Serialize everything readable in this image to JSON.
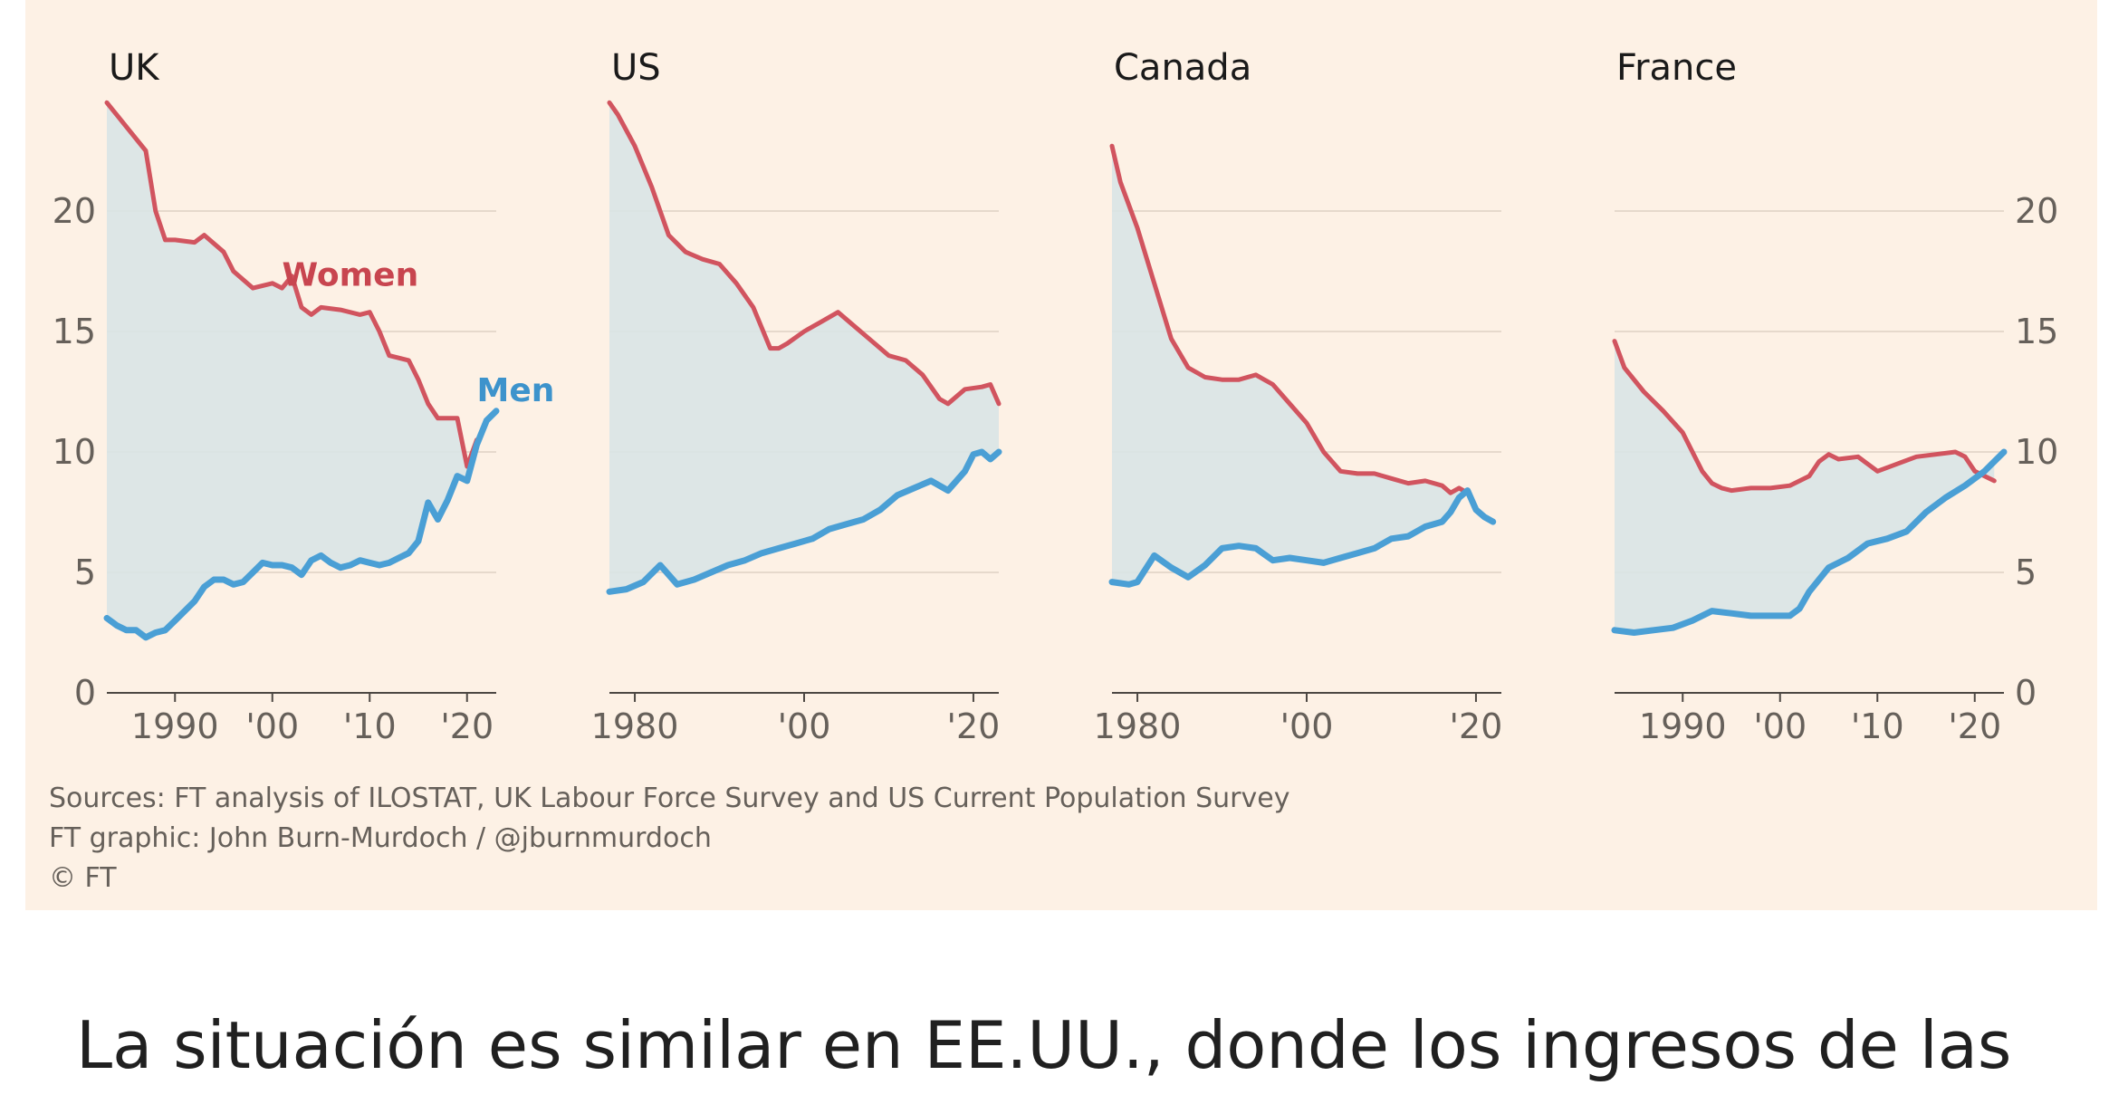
{
  "chart_data": [
    {
      "type": "area",
      "title": "UK",
      "x_ticks": [
        {
          "value": 1990,
          "label": "1990"
        },
        {
          "value": 2000,
          "label": "'00"
        },
        {
          "value": 2010,
          "label": "'10"
        },
        {
          "value": 2020,
          "label": "'20"
        }
      ],
      "xlim": [
        1983,
        2023
      ],
      "ylim": [
        0,
        25
      ],
      "y_ticks": [
        0,
        5,
        10,
        15,
        20
      ],
      "y_axis_side": "left",
      "grid": true,
      "series": [
        {
          "name": "Women",
          "color": "#d1545f",
          "x": [
            1983,
            1985,
            1987,
            1988,
            1989,
            1990,
            1992,
            1993,
            1995,
            1996,
            1998,
            2000,
            2001,
            2002,
            2003,
            2004,
            2005,
            2007,
            2009,
            2010,
            2011,
            2012,
            2014,
            2015,
            2016,
            2017,
            2018,
            2019,
            2020,
            2021
          ],
          "y": [
            24.5,
            23.5,
            22.5,
            20.0,
            18.8,
            18.8,
            18.7,
            19.0,
            18.3,
            17.5,
            16.8,
            17.0,
            16.8,
            17.3,
            16.0,
            15.7,
            16.0,
            15.9,
            15.7,
            15.8,
            15.0,
            14.0,
            13.8,
            13.0,
            12.0,
            11.4,
            11.4,
            11.4,
            9.4,
            10.5
          ]
        },
        {
          "name": "Men",
          "color": "#4a9fd5",
          "x": [
            1983,
            1984,
            1985,
            1986,
            1987,
            1988,
            1989,
            1990,
            1991,
            1992,
            1993,
            1994,
            1995,
            1996,
            1997,
            1998,
            1999,
            2000,
            2001,
            2002,
            2003,
            2004,
            2005,
            2006,
            2007,
            2008,
            2009,
            2010,
            2011,
            2012,
            2013,
            2014,
            2015,
            2016,
            2017,
            2018,
            2019,
            2020,
            2021,
            2022,
            2023
          ],
          "y": [
            3.1,
            2.8,
            2.6,
            2.6,
            2.3,
            2.5,
            2.6,
            3.0,
            3.4,
            3.8,
            4.4,
            4.7,
            4.7,
            4.5,
            4.6,
            5.0,
            5.4,
            5.3,
            5.3,
            5.2,
            4.9,
            5.5,
            5.7,
            5.4,
            5.2,
            5.3,
            5.5,
            5.4,
            5.3,
            5.4,
            5.6,
            5.8,
            6.3,
            7.9,
            7.2,
            8.0,
            9.0,
            8.8,
            10.3,
            11.3,
            11.7
          ]
        }
      ],
      "annotations": [
        {
          "text": "Women",
          "series": "Women"
        },
        {
          "text": "Men",
          "series": "Men"
        }
      ]
    },
    {
      "type": "area",
      "title": "US",
      "x_ticks": [
        {
          "value": 1980,
          "label": "1980"
        },
        {
          "value": 2000,
          "label": "'00"
        },
        {
          "value": 2020,
          "label": "'20"
        }
      ],
      "xlim": [
        1977,
        2023
      ],
      "ylim": [
        0,
        25
      ],
      "y_ticks": [
        0,
        5,
        10,
        15,
        20
      ],
      "grid": true,
      "series": [
        {
          "name": "Women",
          "color": "#d1545f",
          "x": [
            1977,
            1978,
            1980,
            1982,
            1984,
            1986,
            1988,
            1990,
            1992,
            1994,
            1996,
            1997,
            1998,
            2000,
            2002,
            2004,
            2006,
            2008,
            2010,
            2012,
            2014,
            2016,
            2017,
            2019,
            2021,
            2022,
            2023
          ],
          "y": [
            24.5,
            24.0,
            22.7,
            21.0,
            19.0,
            18.3,
            18.0,
            17.8,
            17.0,
            16.0,
            14.3,
            14.3,
            14.5,
            15.0,
            15.4,
            15.8,
            15.2,
            14.6,
            14.0,
            13.8,
            13.2,
            12.2,
            12.0,
            12.6,
            12.7,
            12.8,
            12.0
          ]
        },
        {
          "name": "Men",
          "color": "#4a9fd5",
          "x": [
            1977,
            1979,
            1981,
            1983,
            1985,
            1987,
            1989,
            1991,
            1993,
            1995,
            1997,
            1999,
            2001,
            2003,
            2005,
            2007,
            2009,
            2011,
            2013,
            2015,
            2017,
            2019,
            2020,
            2021,
            2022,
            2023
          ],
          "y": [
            4.2,
            4.3,
            4.6,
            5.3,
            4.5,
            4.7,
            5.0,
            5.3,
            5.5,
            5.8,
            6.0,
            6.2,
            6.4,
            6.8,
            7.0,
            7.2,
            7.6,
            8.2,
            8.5,
            8.8,
            8.4,
            9.2,
            9.9,
            10.0,
            9.7,
            10.0
          ]
        }
      ]
    },
    {
      "type": "area",
      "title": "Canada",
      "x_ticks": [
        {
          "value": 1980,
          "label": "1980"
        },
        {
          "value": 2000,
          "label": "'00"
        },
        {
          "value": 2020,
          "label": "'20"
        }
      ],
      "xlim": [
        1977,
        2023
      ],
      "ylim": [
        0,
        25
      ],
      "y_ticks": [
        0,
        5,
        10,
        15,
        20
      ],
      "grid": true,
      "series": [
        {
          "name": "Women",
          "color": "#d1545f",
          "x": [
            1977,
            1978,
            1980,
            1982,
            1984,
            1986,
            1988,
            1990,
            1992,
            1994,
            1996,
            1998,
            2000,
            2002,
            2004,
            2006,
            2008,
            2010,
            2012,
            2014,
            2016,
            2017,
            2018,
            2019
          ],
          "y": [
            22.7,
            21.2,
            19.3,
            17.0,
            14.7,
            13.5,
            13.1,
            13.0,
            13.0,
            13.2,
            12.8,
            12.0,
            11.2,
            10.0,
            9.2,
            9.1,
            9.1,
            8.9,
            8.7,
            8.8,
            8.6,
            8.3,
            8.5,
            8.3
          ]
        },
        {
          "name": "Men",
          "color": "#4a9fd5",
          "x": [
            1977,
            1979,
            1980,
            1982,
            1984,
            1986,
            1988,
            1990,
            1992,
            1994,
            1996,
            1998,
            2000,
            2002,
            2004,
            2006,
            2008,
            2010,
            2012,
            2014,
            2016,
            2017,
            2018,
            2019,
            2020,
            2021,
            2022
          ],
          "y": [
            4.6,
            4.5,
            4.6,
            5.7,
            5.2,
            4.8,
            5.3,
            6.0,
            6.1,
            6.0,
            5.5,
            5.6,
            5.5,
            5.4,
            5.6,
            5.8,
            6.0,
            6.4,
            6.5,
            6.9,
            7.1,
            7.5,
            8.1,
            8.4,
            7.6,
            7.3,
            7.1
          ]
        }
      ]
    },
    {
      "type": "area",
      "title": "France",
      "x_ticks": [
        {
          "value": 1990,
          "label": "1990"
        },
        {
          "value": 2000,
          "label": "'00"
        },
        {
          "value": 2010,
          "label": "'10"
        },
        {
          "value": 2020,
          "label": "'20"
        }
      ],
      "xlim": [
        1983,
        2023
      ],
      "ylim": [
        0,
        25
      ],
      "y_ticks": [
        0,
        5,
        10,
        15,
        20
      ],
      "y_axis_side": "right",
      "grid": true,
      "series": [
        {
          "name": "Women",
          "color": "#d1545f",
          "x": [
            1983,
            1984,
            1986,
            1988,
            1990,
            1991,
            1992,
            1993,
            1994,
            1995,
            1997,
            1999,
            2001,
            2003,
            2004,
            2005,
            2006,
            2008,
            2010,
            2012,
            2014,
            2016,
            2018,
            2019,
            2020,
            2021,
            2022
          ],
          "y": [
            14.6,
            13.5,
            12.5,
            11.7,
            10.8,
            10.0,
            9.2,
            8.7,
            8.5,
            8.4,
            8.5,
            8.5,
            8.6,
            9.0,
            9.6,
            9.9,
            9.7,
            9.8,
            9.2,
            9.5,
            9.8,
            9.9,
            10.0,
            9.8,
            9.2,
            9.0,
            8.8
          ]
        },
        {
          "name": "Men",
          "color": "#4a9fd5",
          "x": [
            1983,
            1985,
            1987,
            1989,
            1991,
            1993,
            1995,
            1997,
            1999,
            2001,
            2002,
            2003,
            2005,
            2007,
            2009,
            2011,
            2013,
            2015,
            2017,
            2019,
            2021,
            2023
          ],
          "y": [
            2.6,
            2.5,
            2.6,
            2.7,
            3.0,
            3.4,
            3.3,
            3.2,
            3.2,
            3.2,
            3.5,
            4.2,
            5.2,
            5.6,
            6.2,
            6.4,
            6.7,
            7.5,
            8.1,
            8.6,
            9.2,
            10.0
          ]
        }
      ]
    }
  ],
  "sources": {
    "line1": "Sources: FT analysis of ILOSTAT, UK Labour Force Survey and US Current Population Survey",
    "line2": "FT graphic: John Burn-Murdoch / @jburnmurdoch",
    "line3": "© FT"
  },
  "caption": "La situación es similar en EE.UU., donde los ingresos de las"
}
